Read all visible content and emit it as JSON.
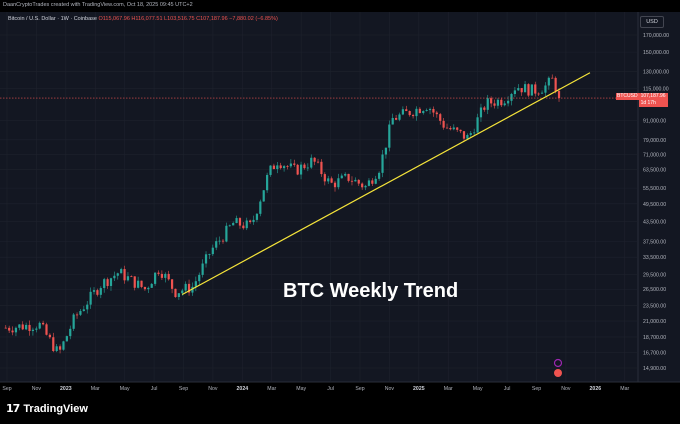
{
  "header": {
    "watermark_line": "DaanCryptoTrades created with TradingView.com, Oct 18, 2025 09:45 UTC+2",
    "symbol_line": "Bitcoin / U.S. Dollar · 1W · Coinbase",
    "ohlc_line": "O115,067.96 H116,077.51 L103,516.75 C107,187.96 −7,880.02 (−6.85%)"
  },
  "currency_label": "USD",
  "overlay_title": "BTC Weekly Trend",
  "price_tag": {
    "ticker": "BTCUSD",
    "price": "107,187.96",
    "time_left": "1d 17h"
  },
  "brand": {
    "logo_mark": "17",
    "name": "TradingView"
  },
  "colors": {
    "background": "#000000",
    "up_candle": "#26a69a",
    "down_candle": "#ef5350",
    "trendline": "#f5e43a",
    "axis_text": "#b2b5be"
  },
  "chart_data": {
    "type": "candlestick",
    "symbol": "BTCUSD",
    "timeframe": "1W",
    "exchange": "Coinbase",
    "y_scale": "log",
    "ylim": [
      13500,
      185000
    ],
    "y_ticks": [
      "170,000.00",
      "150,000.00",
      "130,000.00",
      "115,000.00",
      "91,000.00",
      "79,000.00",
      "71,000.00",
      "63,500.00",
      "55,500.00",
      "49,500.00",
      "43,500.00",
      "37,500.00",
      "33,500.00",
      "29,500.00",
      "26,500.00",
      "23,500.00",
      "21,000.00",
      "18,700.00",
      "16,700.00",
      "14,900.00"
    ],
    "x_ticks": [
      "Sep",
      "Nov",
      "2023",
      "Mar",
      "May",
      "Jul",
      "Sep",
      "Nov",
      "2024",
      "Mar",
      "May",
      "Jul",
      "Sep",
      "Nov",
      "2025",
      "Mar",
      "May",
      "Jul",
      "Sep",
      "Nov",
      "2026",
      "Mar"
    ],
    "current_price": 107187.96,
    "annotation": "BTC Weekly Trend",
    "trendline": {
      "color": "#f5e43a",
      "points": [
        {
          "t": 2023.66,
          "price": 25500
        },
        {
          "t": 2025.97,
          "price": 129000
        }
      ]
    },
    "anchors": [
      {
        "t": 2022.66,
        "price": 20000
      },
      {
        "t": 2022.85,
        "price": 20500
      },
      {
        "t": 2022.96,
        "price": 16500
      },
      {
        "t": 2023.05,
        "price": 21500
      },
      {
        "t": 2023.2,
        "price": 27500
      },
      {
        "t": 2023.3,
        "price": 30000
      },
      {
        "t": 2023.45,
        "price": 26500
      },
      {
        "t": 2023.53,
        "price": 31000
      },
      {
        "t": 2023.62,
        "price": 26000
      },
      {
        "t": 2023.72,
        "price": 27000
      },
      {
        "t": 2023.82,
        "price": 35000
      },
      {
        "t": 2023.95,
        "price": 43000
      },
      {
        "t": 2024.05,
        "price": 42000
      },
      {
        "t": 2024.15,
        "price": 62000
      },
      {
        "t": 2024.2,
        "price": 68000
      },
      {
        "t": 2024.3,
        "price": 63000
      },
      {
        "t": 2024.4,
        "price": 68000
      },
      {
        "t": 2024.5,
        "price": 57000
      },
      {
        "t": 2024.6,
        "price": 60000
      },
      {
        "t": 2024.7,
        "price": 56000
      },
      {
        "t": 2024.78,
        "price": 65000
      },
      {
        "t": 2024.85,
        "price": 92000
      },
      {
        "t": 2024.95,
        "price": 97000
      },
      {
        "t": 2025.05,
        "price": 102000
      },
      {
        "t": 2025.15,
        "price": 87000
      },
      {
        "t": 2025.28,
        "price": 80000
      },
      {
        "t": 2025.38,
        "price": 103000
      },
      {
        "t": 2025.48,
        "price": 106000
      },
      {
        "t": 2025.55,
        "price": 117000
      },
      {
        "t": 2025.65,
        "price": 113000
      },
      {
        "t": 2025.72,
        "price": 117000
      },
      {
        "t": 2025.76,
        "price": 123000
      },
      {
        "t": 2025.78,
        "price": 115000
      },
      {
        "t": 2025.8,
        "price": 107188
      }
    ]
  }
}
